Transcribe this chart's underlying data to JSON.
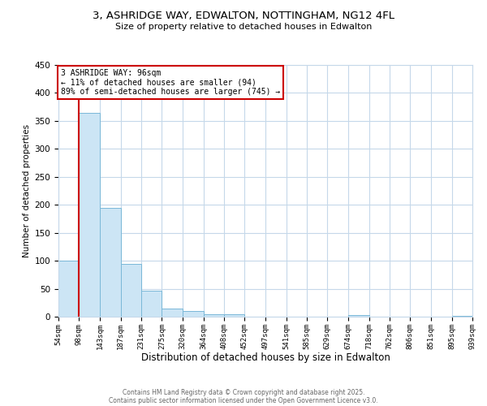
{
  "title_line1": "3, ASHRIDGE WAY, EDWALTON, NOTTINGHAM, NG12 4FL",
  "title_line2": "Size of property relative to detached houses in Edwalton",
  "xlabel": "Distribution of detached houses by size in Edwalton",
  "ylabel": "Number of detached properties",
  "bar_edges": [
    54,
    98,
    143,
    187,
    231,
    275,
    320,
    364,
    408,
    452,
    497,
    541,
    585,
    629,
    674,
    718,
    762,
    806,
    851,
    895,
    939
  ],
  "bar_heights": [
    100,
    365,
    195,
    95,
    47,
    15,
    10,
    5,
    5,
    0,
    0,
    0,
    0,
    0,
    3,
    0,
    0,
    0,
    0,
    2
  ],
  "bar_color": "#cce5f5",
  "bar_edge_color": "#7ab8d8",
  "property_line_x": 98,
  "annotation_title": "3 ASHRIDGE WAY: 96sqm",
  "annotation_line2": "← 11% of detached houses are smaller (94)",
  "annotation_line3": "89% of semi-detached houses are larger (745) →",
  "annotation_box_color": "#ffffff",
  "annotation_box_edge_color": "#cc0000",
  "property_line_color": "#cc0000",
  "ylim": [
    0,
    450
  ],
  "xlim": [
    54,
    939
  ],
  "footer_line1": "Contains HM Land Registry data © Crown copyright and database right 2025.",
  "footer_line2": "Contains public sector information licensed under the Open Government Licence v3.0.",
  "bg_color": "#ffffff",
  "grid_color": "#c5d8ea",
  "tick_labels": [
    "54sqm",
    "98sqm",
    "143sqm",
    "187sqm",
    "231sqm",
    "275sqm",
    "320sqm",
    "364sqm",
    "408sqm",
    "452sqm",
    "497sqm",
    "541sqm",
    "585sqm",
    "629sqm",
    "674sqm",
    "718sqm",
    "762sqm",
    "806sqm",
    "851sqm",
    "895sqm",
    "939sqm"
  ],
  "yticks": [
    0,
    50,
    100,
    150,
    200,
    250,
    300,
    350,
    400,
    450
  ]
}
